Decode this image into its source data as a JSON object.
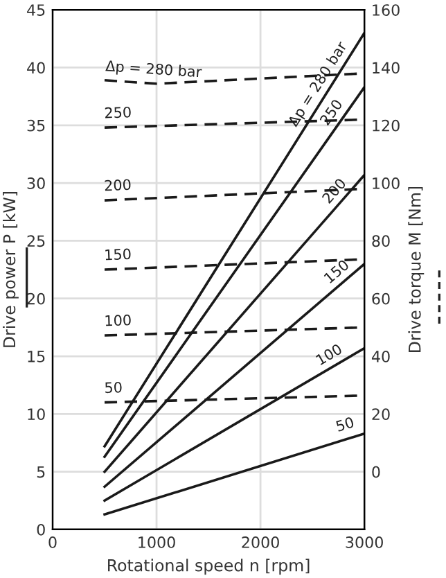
{
  "chart_data": {
    "type": "line",
    "xlabel": "Rotational speed n [rpm]",
    "ylabel": "Drive power P [kW]",
    "y2label": "Drive torque M [Nm]",
    "xlim": [
      0,
      3000
    ],
    "xticks": [
      0,
      1000,
      2000,
      3000
    ],
    "ylim": [
      0,
      45
    ],
    "yticks": [
      0,
      5,
      10,
      15,
      20,
      25,
      30,
      35,
      40,
      45
    ],
    "y2lim": [
      -20,
      160
    ],
    "y2ticks": [
      0,
      20,
      40,
      60,
      80,
      100,
      120,
      140,
      160
    ],
    "grid": true,
    "marker": "none",
    "series": [
      {
        "x": [
          500,
          3000
        ],
        "values": [
          7.2,
          43
        ],
        "color": "#1a1a1a",
        "line_style": "solid"
      },
      {
        "x": [
          500,
          3000
        ],
        "values": [
          6.3,
          38.3
        ],
        "color": "#1a1a1a",
        "line_style": "solid"
      },
      {
        "x": [
          500,
          3000
        ],
        "values": [
          5.0,
          30.7
        ],
        "color": "#1a1a1a",
        "line_style": "solid"
      },
      {
        "x": [
          500,
          3000
        ],
        "values": [
          3.7,
          23
        ],
        "color": "#1a1a1a",
        "line_style": "solid"
      },
      {
        "x": [
          500,
          3000
        ],
        "values": [
          2.5,
          15.7
        ],
        "color": "#1a1a1a",
        "line_style": "solid"
      },
      {
        "x": [
          500,
          3000
        ],
        "values": [
          1.3,
          8.3
        ],
        "color": "#1a1a1a",
        "line_style": "solid"
      },
      {
        "x": [
          500,
          1000,
          3000
        ],
        "values": [
          135.6,
          134.4,
          138
        ],
        "color": "#1a1a1a",
        "line_style": "dashed",
        "axis": "y2"
      },
      {
        "x": [
          500,
          3000
        ],
        "values": [
          119.2,
          122
        ],
        "color": "#1a1a1a",
        "line_style": "dashed",
        "axis": "y2"
      },
      {
        "x": [
          500,
          3000
        ],
        "values": [
          94,
          98
        ],
        "color": "#1a1a1a",
        "line_style": "dashed",
        "axis": "y2"
      },
      {
        "x": [
          500,
          3000
        ],
        "values": [
          70,
          73.6
        ],
        "color": "#1a1a1a",
        "line_style": "dashed",
        "axis": "y2"
      },
      {
        "x": [
          500,
          3000
        ],
        "values": [
          47.2,
          50
        ],
        "color": "#1a1a1a",
        "line_style": "dashed",
        "axis": "y2"
      },
      {
        "x": [
          500,
          3000
        ],
        "values": [
          24,
          26.4
        ],
        "color": "#1a1a1a",
        "line_style": "dashed",
        "axis": "y2"
      }
    ],
    "annotations": [
      {
        "text": "Δp = 280 bar",
        "x": 500,
        "y": 38.9
      },
      {
        "text": "250",
        "x": 500,
        "y": 34.8
      },
      {
        "text": "200",
        "x": 500,
        "y": 28.5
      },
      {
        "text": "150",
        "x": 500,
        "y": 22.5
      },
      {
        "text": "100",
        "x": 500,
        "y": 16.8
      },
      {
        "text": "50",
        "x": 500,
        "y": 11
      },
      {
        "text": "Δp = 280 bar",
        "x": 2650,
        "y": 38
      },
      {
        "text": "250",
        "x": 2780,
        "y": 35.5
      },
      {
        "text": "200",
        "x": 2800,
        "y": 28.6
      },
      {
        "text": "150",
        "x": 2810,
        "y": 21.5
      },
      {
        "text": "100",
        "x": 2720,
        "y": 14.2
      },
      {
        "text": "50",
        "x": 2770,
        "y": 7.66
      }
    ]
  }
}
